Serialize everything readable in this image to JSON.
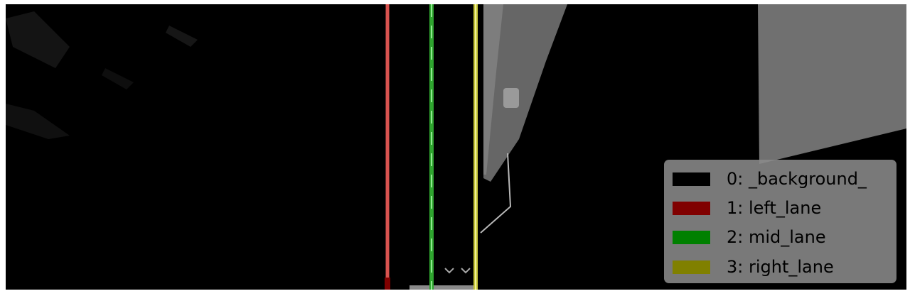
{
  "legend": {
    "entries": [
      {
        "label": "0: _background_",
        "color": "#000000"
      },
      {
        "label": "1: left_lane",
        "color": "#800000"
      },
      {
        "label": "2: mid_lane",
        "color": "#008000"
      },
      {
        "label": "3: right_lane",
        "color": "#808000"
      }
    ]
  },
  "overlay_colors": {
    "left_lane_line": "#d9534f",
    "mid_lane_line": "#2fa52f",
    "right_lane_line": "#c8c83a"
  }
}
